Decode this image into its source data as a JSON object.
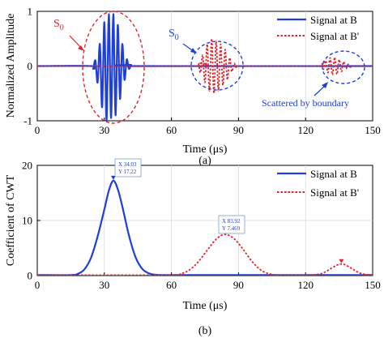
{
  "colors": {
    "signal_b": "#1f3fd6",
    "signal_b_prime": "#e0242a"
  },
  "charts": {
    "a": {
      "panel_label": "(a)",
      "ylabel": "Normalized Amplitude",
      "xlabel": "Time (μs)",
      "annotations": {
        "s0_red": {
          "base": "S",
          "sub": "0"
        },
        "s0_blue": {
          "base": "S",
          "sub": "0"
        },
        "scattered": "Scattered by boundary"
      },
      "series": [
        {
          "name": "Signal at B"
        },
        {
          "name": "Signal at B'"
        }
      ]
    },
    "b": {
      "panel_label": "(b)",
      "ylabel": "Coefficient of CWT",
      "xlabel": "Time (μs)",
      "datatips": [
        {
          "x_text": "X 34.03",
          "y_text": "Y 17.22"
        },
        {
          "x_text": "X 83.92",
          "y_text": "Y 7.469"
        }
      ],
      "series": [
        {
          "name": "Signal at B"
        },
        {
          "name": "Signal at B'"
        }
      ]
    }
  },
  "chart_data": [
    {
      "type": "line",
      "title": "",
      "xlabel": "Time (μs)",
      "ylabel": "Normalized Amplitude",
      "xlim": [
        0,
        150
      ],
      "ylim": [
        -1,
        1
      ],
      "xticks": [
        0,
        30,
        60,
        90,
        120,
        150
      ],
      "yticks": [
        -1,
        0,
        1
      ],
      "grid": true,
      "legend_position": "top-right",
      "series": [
        {
          "name": "Signal at B",
          "style": "solid",
          "x": [
            0,
            24,
            25,
            26,
            27,
            28,
            29,
            30,
            31,
            32,
            33,
            34,
            35,
            36,
            37,
            38,
            39,
            40,
            41,
            42,
            43,
            150
          ],
          "y": [
            0,
            0,
            -0.05,
            0.1,
            -0.3,
            0.4,
            -0.75,
            0.8,
            -1.0,
            0.95,
            -0.95,
            0.95,
            -0.9,
            0.75,
            -0.6,
            0.4,
            -0.25,
            0.12,
            -0.05,
            0.02,
            0,
            0
          ]
        },
        {
          "name": "Signal at B'",
          "style": "dotted",
          "x": [
            0,
            70,
            72,
            73,
            74,
            75,
            76,
            77,
            78,
            79,
            80,
            81,
            82,
            83,
            84,
            85,
            86,
            87,
            88,
            89,
            91,
            125,
            127,
            128,
            129,
            130,
            131,
            132,
            133,
            134,
            135,
            136,
            137,
            138,
            139,
            140,
            142,
            150
          ],
          "y": [
            0,
            0,
            0.05,
            -0.12,
            0.2,
            -0.3,
            0.4,
            -0.45,
            0.5,
            -0.5,
            0.45,
            -0.45,
            0.4,
            -0.35,
            0.3,
            -0.25,
            0.15,
            -0.1,
            0.05,
            -0.02,
            0,
            0,
            0.04,
            -0.06,
            0.1,
            -0.12,
            0.15,
            -0.16,
            0.16,
            -0.15,
            0.12,
            -0.1,
            0.08,
            -0.05,
            0.03,
            -0.02,
            0,
            0
          ]
        }
      ]
    },
    {
      "type": "line",
      "title": "",
      "xlabel": "Time (μs)",
      "ylabel": "Coefficient of CWT",
      "xlim": [
        0,
        150
      ],
      "ylim": [
        0,
        20
      ],
      "xticks": [
        0,
        30,
        60,
        90,
        120,
        150
      ],
      "yticks": [
        0,
        10,
        20
      ],
      "grid": true,
      "legend_position": "top-right",
      "series": [
        {
          "name": "Signal at B",
          "style": "solid",
          "x": [
            0,
            15,
            18,
            21,
            24,
            27,
            30,
            32,
            34,
            36,
            38,
            41,
            44,
            47,
            50,
            53,
            56,
            60,
            150
          ],
          "y": [
            0.1,
            0.1,
            0.3,
            1.1,
            3.2,
            7.1,
            12.0,
            15.4,
            17.22,
            15.7,
            12.6,
            7.3,
            3.3,
            1.2,
            0.4,
            0.15,
            0.1,
            0.1,
            0.1
          ]
        },
        {
          "name": "Signal at B'",
          "style": "dotted",
          "x": [
            0,
            60,
            64,
            68,
            72,
            76,
            80,
            83.92,
            88,
            92,
            96,
            100,
            104,
            108,
            120,
            125,
            128,
            131,
            134,
            136,
            138,
            141,
            144,
            147,
            150
          ],
          "y": [
            0.1,
            0.1,
            0.3,
            1.0,
            2.5,
            4.6,
            6.6,
            7.469,
            6.7,
            4.8,
            2.6,
            1.0,
            0.3,
            0.1,
            0.1,
            0.2,
            0.5,
            1.2,
            1.9,
            2.1,
            1.9,
            1.2,
            0.5,
            0.2,
            0.1
          ]
        }
      ],
      "markers": [
        {
          "series": "Signal at B",
          "x": 34.03,
          "y": 17.22
        },
        {
          "series": "Signal at B'",
          "x": 83.92,
          "y": 7.469
        },
        {
          "series": "Signal at B'",
          "x": 136,
          "y": 2.1
        }
      ]
    }
  ]
}
